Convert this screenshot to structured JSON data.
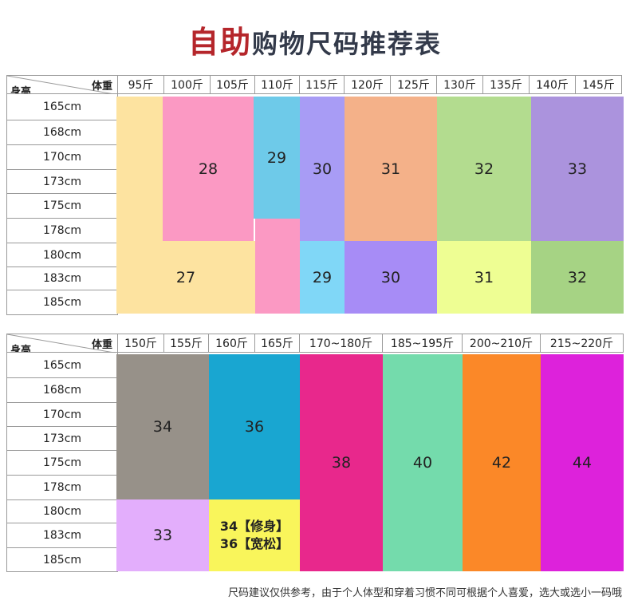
{
  "title": {
    "accent": "自助",
    "rest": "购物尺码推荐表"
  },
  "corner": {
    "weight_label": "体重",
    "height_label": "身高"
  },
  "table1": {
    "weights": [
      "95斤",
      "100斤",
      "105斤",
      "110斤",
      "115斤",
      "120斤",
      "125斤",
      "130斤",
      "135斤",
      "140斤",
      "145斤"
    ],
    "heights": [
      "165cm",
      "168cm",
      "170cm",
      "173cm",
      "175cm",
      "178cm",
      "180cm",
      "183cm",
      "185cm"
    ],
    "sizes": {
      "s27": "27",
      "s28": "28",
      "s29a": "29",
      "s30a": "30",
      "s31a": "31",
      "s32a": "32",
      "s33a": "33",
      "s29b": "29",
      "s30b": "30",
      "s31b": "31",
      "s32b": "32"
    }
  },
  "table2": {
    "weights": [
      "150斤",
      "155斤",
      "160斤",
      "165斤",
      "170~180斤",
      "185~195斤",
      "200~210斤",
      "215~220斤"
    ],
    "heights": [
      "165cm",
      "168cm",
      "170cm",
      "173cm",
      "175cm",
      "178cm",
      "180cm",
      "183cm",
      "185cm"
    ],
    "sizes": {
      "s34": "34",
      "s36": "36",
      "s38": "38",
      "s40": "40",
      "s42": "42",
      "s44": "44",
      "s33": "33",
      "slim": "34【修身】",
      "loose": "36【宽松】"
    }
  },
  "colors": {
    "c27": "#fde3a0",
    "c28": "#fb99c3",
    "c29": "#6ecae9",
    "c30": "#a89cf5",
    "c31": "#f4b189",
    "c32": "#b3dc8f",
    "c33": "#ab93dd",
    "c29b": "#80d7f7",
    "c30b": "#a78cf6",
    "c31b": "#eefe93",
    "c32b": "#a6d384",
    "c34": "#979189",
    "c36": "#19a6d1",
    "c38": "#e8288c",
    "c40": "#74dbac",
    "c42": "#fb8828",
    "c44": "#dd22db",
    "c33b": "#e3aefc",
    "cslim": "#f9f55b"
  },
  "note": "尺码建议仅供参考，由于个人体型和穿着习惯不同可根据个人喜爱，选大或选小一码哦"
}
